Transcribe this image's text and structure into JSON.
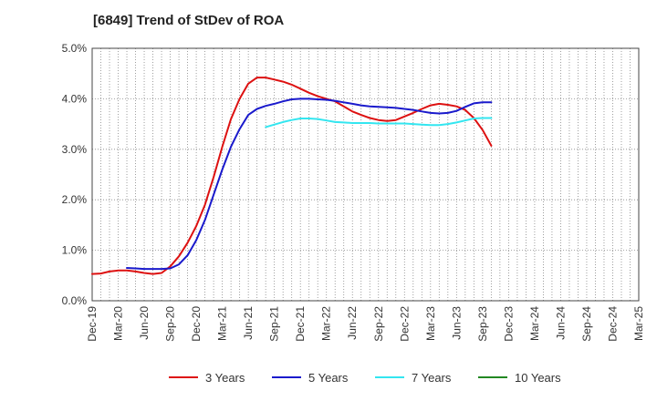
{
  "chart_data": {
    "type": "line",
    "title": "[6849]  Trend of StDev of ROA",
    "xlabel": "",
    "ylabel": "",
    "x_ticks": [
      "Dec-19",
      "Mar-20",
      "Jun-20",
      "Sep-20",
      "Dec-20",
      "Mar-21",
      "Jun-21",
      "Sep-21",
      "Dec-21",
      "Mar-22",
      "Jun-22",
      "Sep-22",
      "Dec-22",
      "Mar-23",
      "Jun-23",
      "Sep-23",
      "Dec-23",
      "Mar-24",
      "Jun-24",
      "Sep-24",
      "Dec-24",
      "Mar-25"
    ],
    "y_ticks": [
      "0.0%",
      "1.0%",
      "2.0%",
      "3.0%",
      "4.0%",
      "5.0%"
    ],
    "ylim": [
      0,
      5
    ],
    "y_unit": "%",
    "grid": true,
    "legend_position": "bottom",
    "series": [
      {
        "name": "3 Years",
        "color": "#dd1111",
        "points": [
          [
            0,
            0.53
          ],
          [
            1,
            0.54
          ],
          [
            2,
            0.58
          ],
          [
            3,
            0.6
          ],
          [
            4,
            0.6
          ],
          [
            5,
            0.58
          ],
          [
            6,
            0.55
          ],
          [
            7,
            0.53
          ],
          [
            8,
            0.55
          ],
          [
            9,
            0.68
          ],
          [
            10,
            0.88
          ],
          [
            11,
            1.15
          ],
          [
            12,
            1.48
          ],
          [
            13,
            1.9
          ],
          [
            14,
            2.45
          ],
          [
            15,
            3.05
          ],
          [
            16,
            3.6
          ],
          [
            17,
            4.0
          ],
          [
            18,
            4.3
          ],
          [
            19,
            4.42
          ],
          [
            20,
            4.42
          ],
          [
            21,
            4.38
          ],
          [
            22,
            4.34
          ],
          [
            23,
            4.28
          ],
          [
            24,
            4.2
          ],
          [
            25,
            4.12
          ],
          [
            26,
            4.05
          ],
          [
            27,
            4.0
          ],
          [
            28,
            3.95
          ],
          [
            29,
            3.85
          ],
          [
            30,
            3.75
          ],
          [
            31,
            3.68
          ],
          [
            32,
            3.62
          ],
          [
            33,
            3.58
          ],
          [
            34,
            3.56
          ],
          [
            35,
            3.58
          ],
          [
            36,
            3.65
          ],
          [
            37,
            3.72
          ],
          [
            38,
            3.8
          ],
          [
            39,
            3.87
          ],
          [
            40,
            3.9
          ],
          [
            41,
            3.88
          ],
          [
            42,
            3.85
          ],
          [
            43,
            3.78
          ],
          [
            44,
            3.62
          ],
          [
            45,
            3.38
          ],
          [
            46,
            3.07
          ]
        ]
      },
      {
        "name": "5 Years",
        "color": "#1a1acc",
        "points": [
          [
            4,
            0.65
          ],
          [
            5,
            0.64
          ],
          [
            6,
            0.63
          ],
          [
            7,
            0.63
          ],
          [
            8,
            0.63
          ],
          [
            9,
            0.64
          ],
          [
            10,
            0.72
          ],
          [
            11,
            0.9
          ],
          [
            12,
            1.2
          ],
          [
            13,
            1.6
          ],
          [
            14,
            2.1
          ],
          [
            15,
            2.6
          ],
          [
            16,
            3.05
          ],
          [
            17,
            3.4
          ],
          [
            18,
            3.68
          ],
          [
            19,
            3.8
          ],
          [
            20,
            3.86
          ],
          [
            21,
            3.9
          ],
          [
            22,
            3.95
          ],
          [
            23,
            3.99
          ],
          [
            24,
            4.0
          ],
          [
            25,
            4.0
          ],
          [
            26,
            3.99
          ],
          [
            27,
            3.98
          ],
          [
            28,
            3.96
          ],
          [
            29,
            3.93
          ],
          [
            30,
            3.9
          ],
          [
            31,
            3.87
          ],
          [
            32,
            3.85
          ],
          [
            33,
            3.84
          ],
          [
            34,
            3.83
          ],
          [
            35,
            3.82
          ],
          [
            36,
            3.8
          ],
          [
            37,
            3.78
          ],
          [
            38,
            3.75
          ],
          [
            39,
            3.72
          ],
          [
            40,
            3.71
          ],
          [
            41,
            3.72
          ],
          [
            42,
            3.76
          ],
          [
            43,
            3.84
          ],
          [
            44,
            3.91
          ],
          [
            45,
            3.93
          ],
          [
            46,
            3.93
          ]
        ]
      },
      {
        "name": "7 Years",
        "color": "#33e6f0",
        "points": [
          [
            20,
            3.44
          ],
          [
            21,
            3.49
          ],
          [
            22,
            3.54
          ],
          [
            23,
            3.58
          ],
          [
            24,
            3.61
          ],
          [
            25,
            3.61
          ],
          [
            26,
            3.6
          ],
          [
            27,
            3.57
          ],
          [
            28,
            3.54
          ],
          [
            29,
            3.53
          ],
          [
            30,
            3.52
          ],
          [
            31,
            3.52
          ],
          [
            32,
            3.52
          ],
          [
            33,
            3.51
          ],
          [
            34,
            3.51
          ],
          [
            35,
            3.51
          ],
          [
            36,
            3.51
          ],
          [
            37,
            3.5
          ],
          [
            38,
            3.49
          ],
          [
            39,
            3.48
          ],
          [
            40,
            3.48
          ],
          [
            41,
            3.5
          ],
          [
            42,
            3.53
          ],
          [
            43,
            3.57
          ],
          [
            44,
            3.61
          ],
          [
            45,
            3.62
          ],
          [
            46,
            3.62
          ]
        ]
      },
      {
        "name": "10 Years",
        "color": "#228822",
        "points": []
      }
    ]
  }
}
